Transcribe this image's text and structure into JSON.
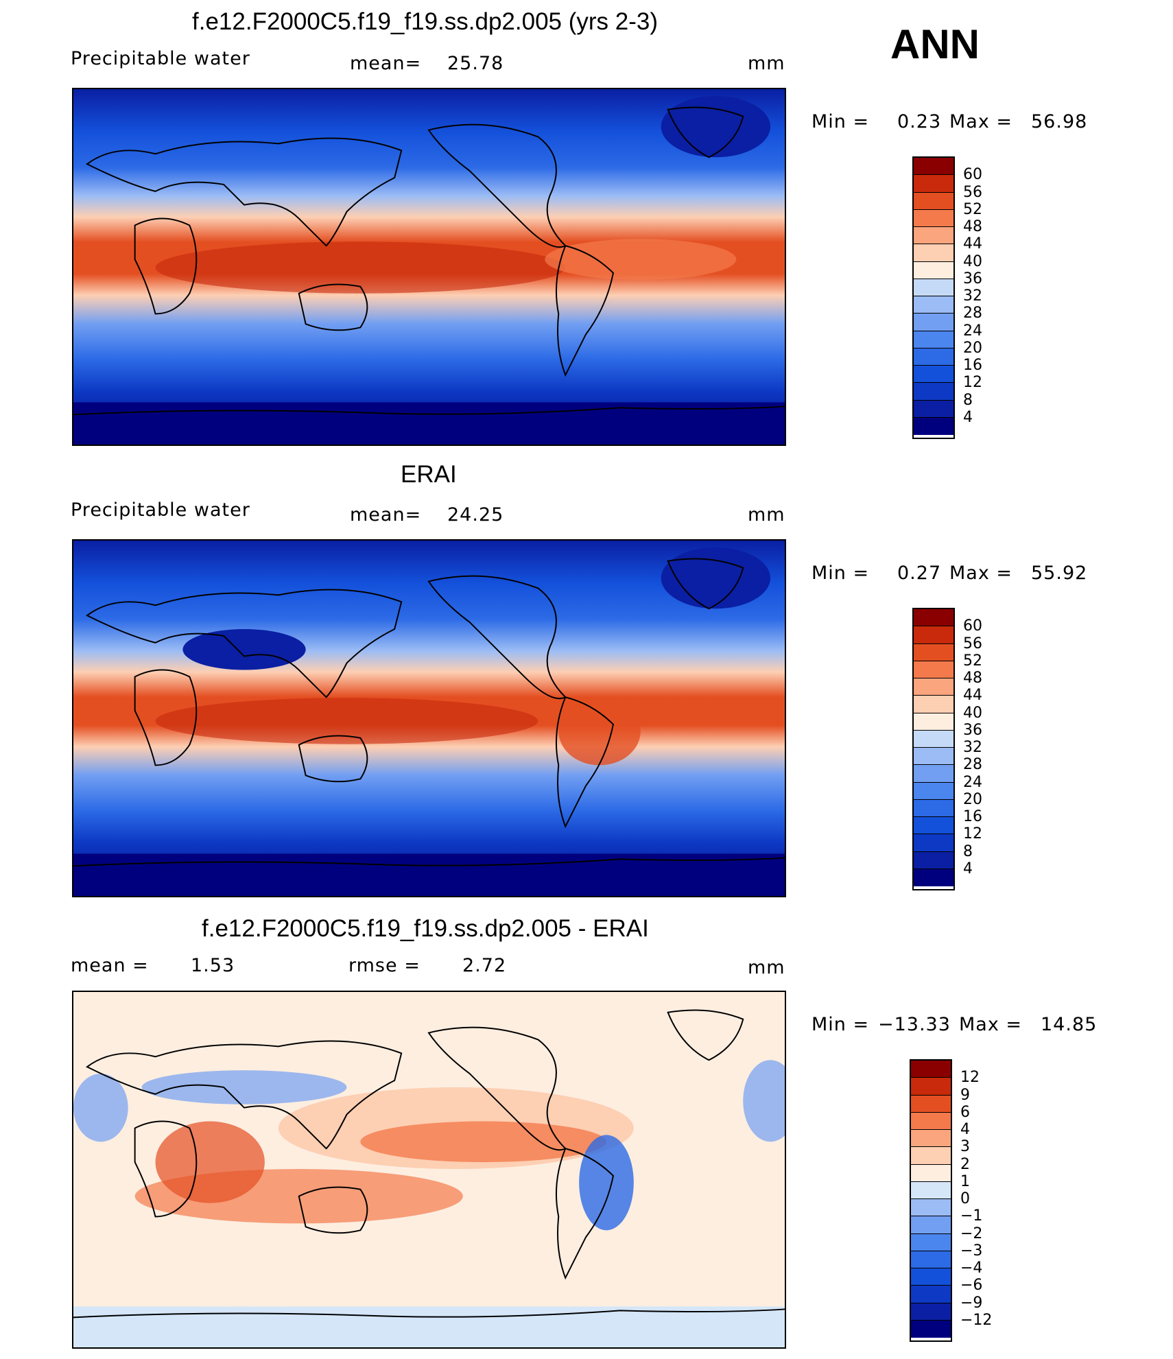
{
  "season": "ANN",
  "colors": {
    "levels15": [
      "#00007f",
      "#0a1fa3",
      "#0d39c4",
      "#1451db",
      "#2c6ae6",
      "#4b85ee",
      "#729ff2",
      "#9bbcf5",
      "#c5daf7",
      "#fdeee0",
      "#fdcfb3",
      "#fba57e",
      "#f47a4c",
      "#e44f22",
      "#c82a0b",
      "#8a0000"
    ],
    "diff16": [
      "#00007f",
      "#0a1fa3",
      "#0d39c4",
      "#1451db",
      "#2c6ae6",
      "#4b85ee",
      "#729ff2",
      "#9bbcf5",
      "#d4e6f8",
      "#fdeee0",
      "#fdcfb3",
      "#fba57e",
      "#f47a4c",
      "#e44f22",
      "#c82a0b",
      "#8a0000"
    ]
  },
  "panels": [
    {
      "title": "f.e12.F2000C5.f19_f19.ss.dp2.005 (yrs 2-3)",
      "variable": "Precipitable  water",
      "stat1_label": "mean=",
      "stat1_value": "25.78",
      "units": "mm",
      "min_label": "Min  =",
      "min_value": "0.23",
      "max_label": "Max  =",
      "max_value": "56.98",
      "colorbar_labels": [
        "60",
        "56",
        "52",
        "48",
        "44",
        "40",
        "36",
        "32",
        "28",
        "24",
        "20",
        "16",
        "12",
        "8",
        "4"
      ]
    },
    {
      "title": "ERAI",
      "variable": "Precipitable  water",
      "stat1_label": "mean=",
      "stat1_value": "24.25",
      "units": "mm",
      "min_label": "Min  =",
      "min_value": "0.27",
      "max_label": "Max  =",
      "max_value": "55.92",
      "colorbar_labels": [
        "60",
        "56",
        "52",
        "48",
        "44",
        "40",
        "36",
        "32",
        "28",
        "24",
        "20",
        "16",
        "12",
        "8",
        "4"
      ]
    },
    {
      "title": "f.e12.F2000C5.f19_f19.ss.dp2.005 - ERAI",
      "stat1_label": "mean  =",
      "stat1_value": "1.53",
      "stat2_label": "rmse  =",
      "stat2_value": "2.72",
      "units": "mm",
      "min_label": "Min  =",
      "min_value": "−13.33",
      "max_label": "Max  =",
      "max_value": "14.85",
      "colorbar_labels": [
        "12",
        "9",
        "6",
        "4",
        "3",
        "2",
        "1",
        "0",
        "−1",
        "−2",
        "−3",
        "−4",
        "−6",
        "−9",
        "−12"
      ]
    }
  ]
}
